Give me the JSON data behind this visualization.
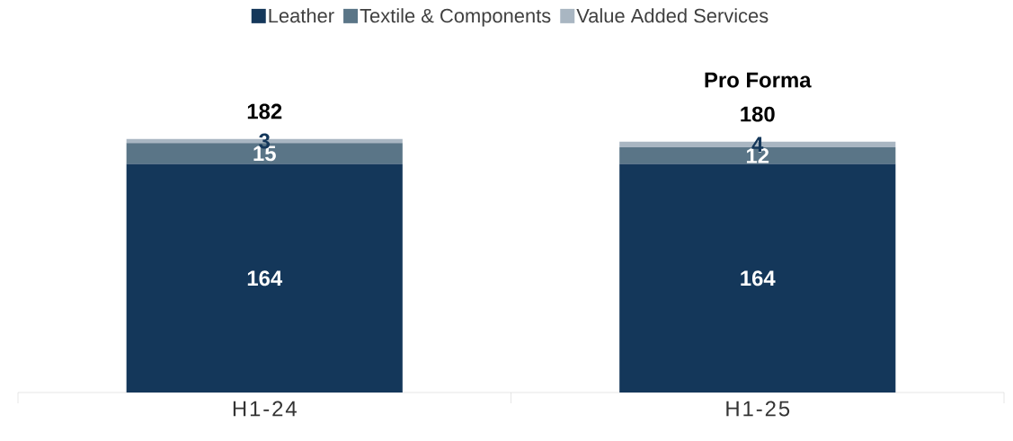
{
  "chart_data": {
    "type": "bar",
    "stacked": true,
    "categories": [
      "H1-24",
      "H1-25"
    ],
    "series": [
      {
        "name": "Leather",
        "color": "#14375a",
        "values": [
          164,
          164
        ]
      },
      {
        "name": "Textile & Components",
        "color": "#5a7587",
        "values": [
          15,
          12
        ]
      },
      {
        "name": "Value Added Services",
        "color": "#a9b6c2",
        "values": [
          3,
          4
        ]
      }
    ],
    "data_labels": true,
    "totals": [
      "182",
      "180"
    ],
    "legend": "top",
    "annotations": [
      "Pro Forma"
    ]
  }
}
